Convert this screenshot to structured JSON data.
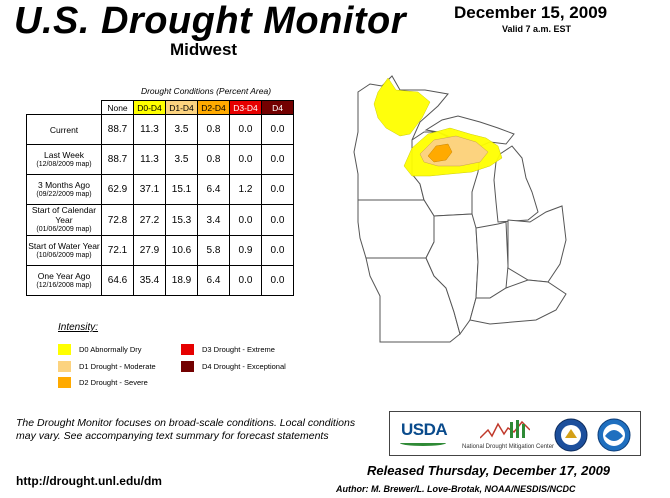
{
  "header": {
    "title": "U.S. Drought Monitor",
    "region": "Midwest",
    "date": "December 15, 2009",
    "valid": "Valid 7 a.m. EST"
  },
  "table": {
    "caption": "Drought Conditions (Percent Area)",
    "columns": [
      "None",
      "D0-D4",
      "D1-D4",
      "D2-D4",
      "D3-D4",
      "D4"
    ],
    "rows": [
      {
        "label": "Current",
        "sub": "",
        "values": [
          "88.7",
          "11.3",
          "3.5",
          "0.8",
          "0.0",
          "0.0"
        ]
      },
      {
        "label": "Last Week",
        "sub": "(12/08/2009 map)",
        "values": [
          "88.7",
          "11.3",
          "3.5",
          "0.8",
          "0.0",
          "0.0"
        ]
      },
      {
        "label": "3 Months Ago",
        "sub": "(09/22/2009 map)",
        "values": [
          "62.9",
          "37.1",
          "15.1",
          "6.4",
          "1.2",
          "0.0"
        ]
      },
      {
        "label": "Start of Calendar Year",
        "sub": "(01/06/2009 map)",
        "values": [
          "72.8",
          "27.2",
          "15.3",
          "3.4",
          "0.0",
          "0.0"
        ]
      },
      {
        "label": "Start of Water Year",
        "sub": "(10/06/2009 map)",
        "values": [
          "72.1",
          "27.9",
          "10.6",
          "5.8",
          "0.9",
          "0.0"
        ]
      },
      {
        "label": "One Year Ago",
        "sub": "(12/16/2008 map)",
        "values": [
          "64.6",
          "35.4",
          "18.9",
          "6.4",
          "0.0",
          "0.0"
        ]
      }
    ]
  },
  "legend": {
    "title": "Intensity:",
    "items": [
      {
        "label": "D0 Abnormally Dry",
        "color": "#ffff00"
      },
      {
        "label": "D1 Drought - Moderate",
        "color": "#fcd37f"
      },
      {
        "label": "D2 Drought - Severe",
        "color": "#ffaa00"
      },
      {
        "label": "D3 Drought - Extreme",
        "color": "#e60000"
      },
      {
        "label": "D4 Drought - Exceptional",
        "color": "#730000"
      }
    ]
  },
  "footer": {
    "note": "The Drought Monitor focuses on broad-scale conditions. Local conditions may vary. See accompanying text summary for forecast statements",
    "url": "http://drought.unl.edu/dm",
    "released": "Released Thursday, December 17, 2009",
    "author": "Author: M. Brewer/L. Love-Brotak, NOAA/NESDIS/NCDC"
  },
  "logos": {
    "usda": "USDA",
    "ndmc": "National Drought Mitigation Center"
  },
  "column_colors": [
    "#ffffff",
    "#ffff00",
    "#fcd37f",
    "#ffaa00",
    "#e60000",
    "#730000"
  ],
  "column_text_colors": [
    "#000000",
    "#000000",
    "#000000",
    "#000000",
    "#ffffff",
    "#ffffff"
  ]
}
